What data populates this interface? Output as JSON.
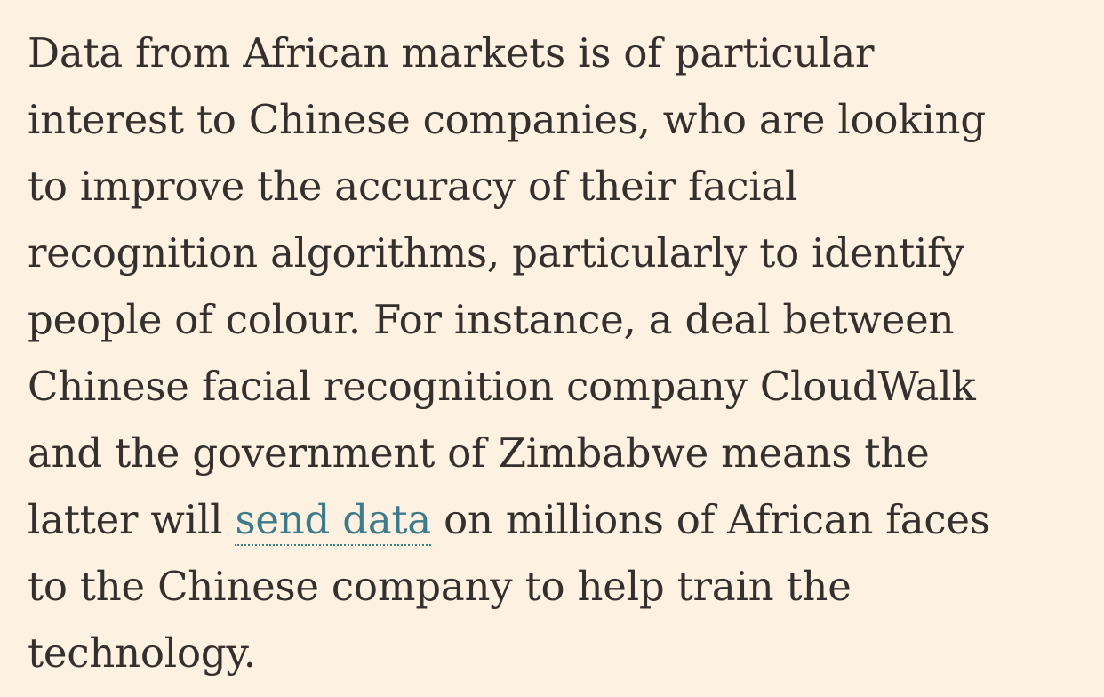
{
  "paragraph": {
    "line1": "Data from African markets is of particular",
    "line2": "interest to Chinese companies, who are looking",
    "line3": "to improve the accuracy of their facial",
    "line4": "recognition algorithms, particularly to identify",
    "line5": "people of colour. For instance, a deal between",
    "line6": "Chinese facial recognition company CloudWalk",
    "line7": "and the government of Zimbabwe means the",
    "line8_before": "latter will ",
    "link_text": "send data",
    "line8_after": " on millions of African faces",
    "line9": "to the Chinese company to help train the",
    "line10": "technology."
  },
  "colors": {
    "background": "#fdf1e2",
    "text": "#33302e",
    "link": "#3d7a8a"
  }
}
